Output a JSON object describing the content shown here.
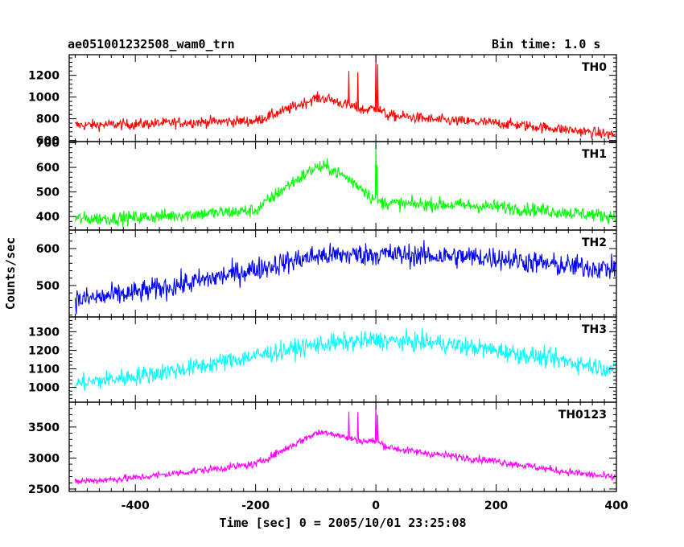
{
  "header": {
    "title": "ae051001232508_wam0_trn",
    "bin_time": "Bin time: 1.0 s"
  },
  "chart_data": {
    "type": "line",
    "xlabel": "Time [sec] 0 = 2005/10/01 23:25:08",
    "ylabel": "Counts/sec",
    "xlim": [
      -510,
      400
    ],
    "x_ticks": [
      -400,
      -200,
      0,
      200,
      400
    ],
    "panels": [
      {
        "name": "TH0",
        "color": "#ff0000",
        "ylim": [
          590,
          1390
        ],
        "y_ticks": [
          600,
          800,
          1000,
          1200
        ],
        "x": [
          -500,
          -400,
          -300,
          -200,
          -150,
          -100,
          -80,
          -50,
          -20,
          0,
          20,
          50,
          100,
          200,
          300,
          400
        ],
        "y": [
          740,
          750,
          770,
          780,
          880,
          990,
          985,
          930,
          880,
          900,
          830,
          820,
          790,
          760,
          710,
          650
        ],
        "noise": 45,
        "spikes": [
          [
            -45,
            1240
          ],
          [
            -30,
            1230
          ],
          [
            0,
            1390
          ],
          [
            3,
            1300
          ]
        ]
      },
      {
        "name": "TH1",
        "color": "#00ff00",
        "ylim": [
          345,
          705
        ],
        "y_ticks": [
          400,
          500,
          600,
          700
        ],
        "x": [
          -500,
          -400,
          -300,
          -200,
          -150,
          -100,
          -80,
          -50,
          -20,
          0,
          50,
          100,
          200,
          300,
          400
        ],
        "y": [
          390,
          395,
          410,
          425,
          520,
          600,
          600,
          560,
          510,
          460,
          450,
          450,
          440,
          420,
          400
        ],
        "noise": 25,
        "spikes": [
          [
            0,
            695
          ],
          [
            2,
            610
          ]
        ]
      },
      {
        "name": "TH2",
        "color": "#0000ff",
        "ylim": [
          415,
          650
        ],
        "y_ticks": [
          500,
          600
        ],
        "x": [
          -500,
          -400,
          -300,
          -200,
          -100,
          0,
          100,
          200,
          300,
          400
        ],
        "y": [
          460,
          480,
          510,
          545,
          580,
          585,
          580,
          575,
          555,
          545
        ],
        "noise": 28,
        "spikes": []
      },
      {
        "name": "TH3",
        "color": "#00ffff",
        "ylim": [
          920,
          1380
        ],
        "y_ticks": [
          1000,
          1100,
          1200,
          1300
        ],
        "x": [
          -500,
          -400,
          -300,
          -200,
          -100,
          0,
          100,
          200,
          300,
          400
        ],
        "y": [
          1020,
          1060,
          1110,
          1170,
          1230,
          1255,
          1240,
          1200,
          1150,
          1095
        ],
        "noise": 45,
        "spikes": []
      },
      {
        "name": "TH0123",
        "color": "#ff00ff",
        "ylim": [
          2460,
          3900
        ],
        "y_ticks": [
          2500,
          3000,
          3500
        ],
        "x": [
          -500,
          -400,
          -300,
          -200,
          -150,
          -100,
          -80,
          -50,
          -20,
          0,
          20,
          50,
          100,
          200,
          300,
          400
        ],
        "y": [
          2620,
          2680,
          2790,
          2900,
          3150,
          3400,
          3420,
          3330,
          3270,
          3270,
          3180,
          3120,
          3060,
          2950,
          2800,
          2680
        ],
        "noise": 55,
        "spikes": [
          [
            -45,
            3750
          ],
          [
            -30,
            3740
          ],
          [
            0,
            3900
          ],
          [
            3,
            3700
          ]
        ]
      }
    ]
  }
}
